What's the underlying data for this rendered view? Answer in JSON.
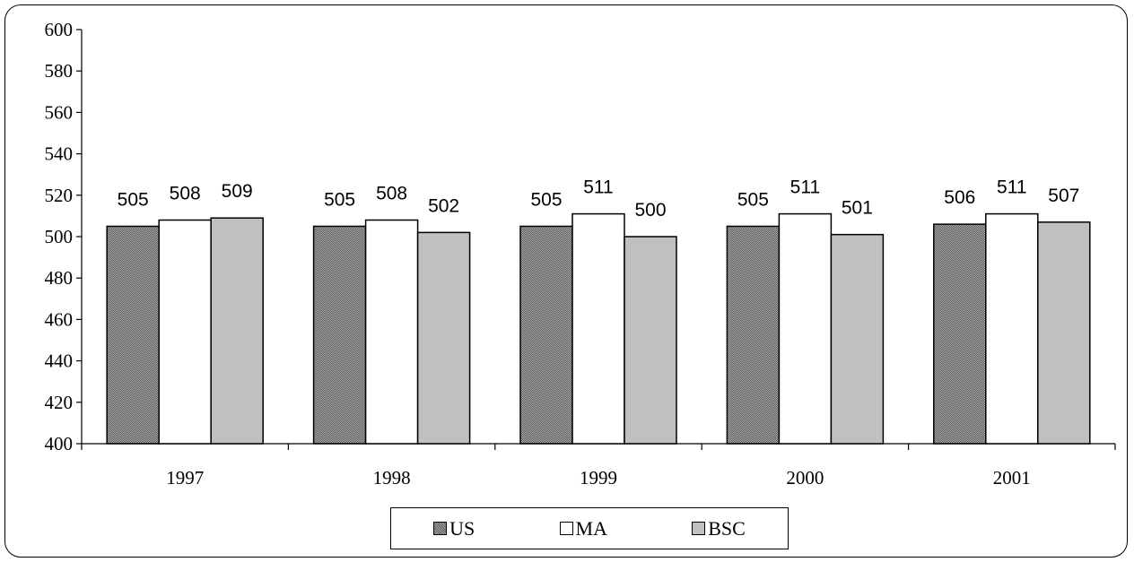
{
  "chart_data": {
    "type": "bar",
    "categories": [
      "1997",
      "1998",
      "1999",
      "2000",
      "2001"
    ],
    "series": [
      {
        "name": "US",
        "values": [
          505,
          505,
          505,
          505,
          506
        ],
        "color": "#8a8a8a",
        "pattern": "dense-hatch"
      },
      {
        "name": "MA",
        "values": [
          508,
          508,
          511,
          511,
          511
        ],
        "color": "#ffffff"
      },
      {
        "name": "BSC",
        "values": [
          509,
          502,
          500,
          501,
          507
        ],
        "color": "#c0c0c0"
      }
    ],
    "title": "",
    "xlabel": "",
    "ylabel": "",
    "ylim": [
      400,
      600
    ],
    "yticks": [
      "400",
      "420",
      "440",
      "460",
      "480",
      "500",
      "520",
      "540",
      "560",
      "580",
      "600"
    ],
    "grid": false,
    "legend_position": "bottom-center",
    "data_labels": true
  }
}
